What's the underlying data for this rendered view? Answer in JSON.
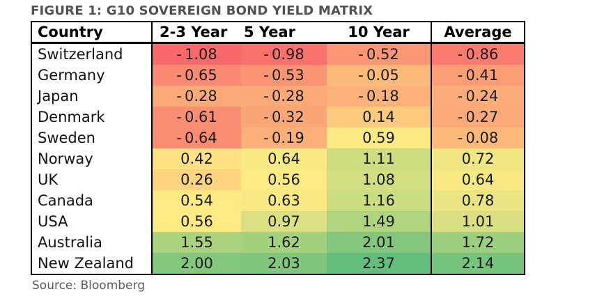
{
  "figure": {
    "title": "FIGURE 1: G10 SOVEREIGN BOND YIELD MATRIX",
    "source": "Source: Bloomberg"
  },
  "chart_data": {
    "type": "heatmap",
    "title": "FIGURE 1: G10 SOVEREIGN BOND YIELD MATRIX",
    "columns": [
      "Country",
      "2-3 Year",
      "5 Year",
      "10 Year",
      "Average"
    ],
    "rows": [
      {
        "country": "Switzerland",
        "values": [
          -1.08,
          -0.98,
          -0.52,
          -0.86
        ]
      },
      {
        "country": "Germany",
        "values": [
          -0.65,
          -0.53,
          -0.05,
          -0.41
        ]
      },
      {
        "country": "Japan",
        "values": [
          -0.28,
          -0.28,
          -0.18,
          -0.24
        ]
      },
      {
        "country": "Denmark",
        "values": [
          -0.61,
          -0.32,
          0.14,
          -0.27
        ]
      },
      {
        "country": "Sweden",
        "values": [
          -0.64,
          -0.19,
          0.59,
          -0.08
        ]
      },
      {
        "country": "Norway",
        "values": [
          0.42,
          0.64,
          1.11,
          0.72
        ]
      },
      {
        "country": "UK",
        "values": [
          0.26,
          0.56,
          1.08,
          0.64
        ]
      },
      {
        "country": "Canada",
        "values": [
          0.54,
          0.63,
          1.16,
          0.78
        ]
      },
      {
        "country": "USA",
        "values": [
          0.56,
          0.97,
          1.49,
          1.01
        ]
      },
      {
        "country": "Australia",
        "values": [
          1.55,
          1.62,
          2.01,
          1.72
        ]
      },
      {
        "country": "New Zealand",
        "values": [
          2.0,
          2.03,
          2.37,
          2.14
        ]
      }
    ],
    "value_decimals": 2,
    "color_scale": {
      "type": "3-color",
      "min": {
        "value": -1.08,
        "color": "#F8696B"
      },
      "mid": {
        "value": 0.55,
        "color": "#FFEB84"
      },
      "max": {
        "value": 2.37,
        "color": "#63BE7B"
      }
    },
    "legend_position": "none",
    "source": "Source: Bloomberg"
  },
  "colors": {
    "background": "#FFFFFF",
    "table_border": "#000000",
    "title_text": "#525255",
    "source_text": "#5A5A5C",
    "cell_text": "#1B1B1B",
    "heat_min": "#F8696B",
    "heat_mid": "#FFEB84",
    "heat_max": "#63BE7B"
  }
}
